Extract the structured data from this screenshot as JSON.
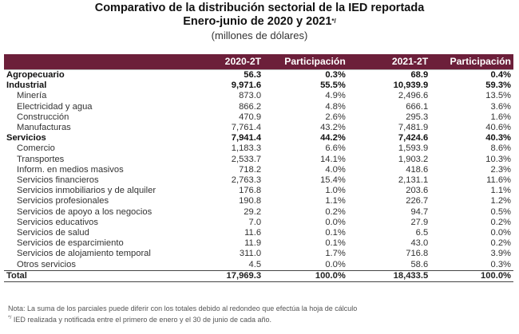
{
  "header": {
    "title_line1": "Comparativo de la distribución sectorial de la IED reportada",
    "title_line2": "Enero-junio de 2020 y 2021",
    "title_footnote_mark": "*/",
    "subtitle": "(millones de dólares)"
  },
  "table": {
    "columns": [
      "",
      "2020-2T",
      "Participación",
      "2021-2T",
      "Participación"
    ],
    "rows": [
      {
        "label": "Agropecuario",
        "v2020": "56.3",
        "p2020": "0.3%",
        "v2021": "68.9",
        "p2021": "0.4%",
        "level": "section"
      },
      {
        "label": "Industrial",
        "v2020": "9,971.6",
        "p2020": "55.5%",
        "v2021": "10,939.9",
        "p2021": "59.3%",
        "level": "section"
      },
      {
        "label": "Minería",
        "v2020": "873.0",
        "p2020": "4.9%",
        "v2021": "2,496.6",
        "p2021": "13.5%",
        "level": "sub"
      },
      {
        "label": "Electricidad y agua",
        "v2020": "866.2",
        "p2020": "4.8%",
        "v2021": "666.1",
        "p2021": "3.6%",
        "level": "sub"
      },
      {
        "label": "Construcción",
        "v2020": "470.9",
        "p2020": "2.6%",
        "v2021": "295.3",
        "p2021": "1.6%",
        "level": "sub"
      },
      {
        "label": "Manufacturas",
        "v2020": "7,761.4",
        "p2020": "43.2%",
        "v2021": "7,481.9",
        "p2021": "40.6%",
        "level": "sub"
      },
      {
        "label": "Servicios",
        "v2020": "7,941.4",
        "p2020": "44.2%",
        "v2021": "7,424.6",
        "p2021": "40.3%",
        "level": "section"
      },
      {
        "label": "Comercio",
        "v2020": "1,183.3",
        "p2020": "6.6%",
        "v2021": "1,593.9",
        "p2021": "8.6%",
        "level": "sub"
      },
      {
        "label": "Transportes",
        "v2020": "2,533.7",
        "p2020": "14.1%",
        "v2021": "1,903.2",
        "p2021": "10.3%",
        "level": "sub"
      },
      {
        "label": "Inform. en medios masivos",
        "v2020": "718.2",
        "p2020": "4.0%",
        "v2021": "418.6",
        "p2021": "2.3%",
        "level": "sub"
      },
      {
        "label": "Servicios financieros",
        "v2020": "2,763.3",
        "p2020": "15.4%",
        "v2021": "2,131.1",
        "p2021": "11.6%",
        "level": "sub"
      },
      {
        "label": "Servicios inmobiliarios y de alquiler",
        "v2020": "176.8",
        "p2020": "1.0%",
        "v2021": "203.6",
        "p2021": "1.1%",
        "level": "sub"
      },
      {
        "label": "Servicios profesionales",
        "v2020": "190.8",
        "p2020": "1.1%",
        "v2021": "226.7",
        "p2021": "1.2%",
        "level": "sub"
      },
      {
        "label": "Servicios de apoyo a los negocios",
        "v2020": "29.2",
        "p2020": "0.2%",
        "v2021": "94.7",
        "p2021": "0.5%",
        "level": "sub"
      },
      {
        "label": "Servicios educativos",
        "v2020": "7.0",
        "p2020": "0.0%",
        "v2021": "27.9",
        "p2021": "0.2%",
        "level": "sub"
      },
      {
        "label": "Servicios de salud",
        "v2020": "11.6",
        "p2020": "0.1%",
        "v2021": "6.5",
        "p2021": "0.0%",
        "level": "sub"
      },
      {
        "label": "Servicios de esparcimiento",
        "v2020": "11.9",
        "p2020": "0.1%",
        "v2021": "43.0",
        "p2021": "0.2%",
        "level": "sub"
      },
      {
        "label": "Servicios de alojamiento temporal",
        "v2020": "311.0",
        "p2020": "1.7%",
        "v2021": "716.8",
        "p2021": "3.9%",
        "level": "sub"
      },
      {
        "label": "Otros servicios",
        "v2020": "4.5",
        "p2020": "0.0%",
        "v2021": "58.6",
        "p2021": "0.3%",
        "level": "sub"
      },
      {
        "label": "Total",
        "v2020": "17,969.3",
        "p2020": "100.0%",
        "v2021": "18,433.5",
        "p2021": "100.0%",
        "level": "total"
      }
    ]
  },
  "notes": {
    "line1": "Nota: La suma de los parciales puede diferir con los totales debido al redondeo que efectúa la hoja de cálculo",
    "line2_mark": "*/",
    "line2_text": " IED realizada y notificada entre el primero de enero y el 30 de junio de cada año."
  },
  "colors": {
    "header_bg": "#6c1f3a",
    "header_text": "#ffffff"
  }
}
